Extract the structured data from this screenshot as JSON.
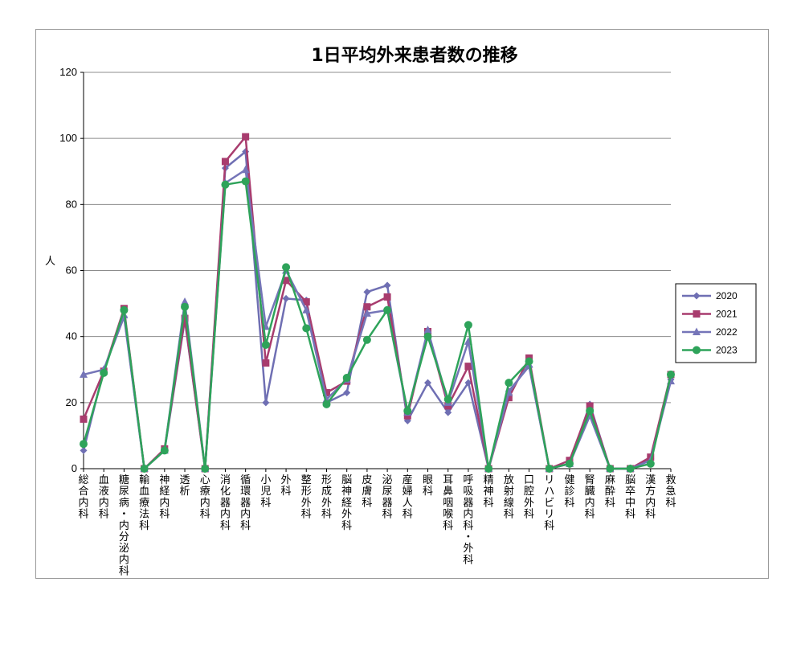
{
  "chart_data": {
    "type": "line",
    "title": "1日平均外来患者数の推移",
    "xlabel": "",
    "ylabel": "人",
    "ylim": [
      0,
      120
    ],
    "yticks": [
      0,
      20,
      40,
      60,
      80,
      100,
      120
    ],
    "grid": true,
    "legend_position": "right",
    "categories": [
      "総合内科",
      "血液内科",
      "糖尿病・内分泌内科",
      "輸血療法科",
      "神経内科",
      "透析",
      "心療内科",
      "消化器内科",
      "循環器内科",
      "小児科",
      "外科",
      "整形外科",
      "形成外科",
      "脳神経外科",
      "皮膚科",
      "泌尿器科",
      "産婦人科",
      "眼科",
      "耳鼻咽喉科",
      "呼吸器内科・外科",
      "精神科",
      "放射線科",
      "口腔外科",
      "リハビリ科",
      "健診科",
      "腎臓内科",
      "麻酔科",
      "脳卒中科",
      "漢方内科",
      "救急科"
    ],
    "series": [
      {
        "name": "2020",
        "color": "#6f6fb3",
        "marker": "diamond",
        "values": [
          5.5,
          30,
          46,
          0,
          5.5,
          45,
          0,
          91,
          96,
          20,
          51.5,
          51,
          20,
          23,
          53.5,
          55.5,
          14.5,
          26,
          17,
          26,
          0,
          23.5,
          31,
          0,
          1.5,
          19.5,
          0,
          0,
          3,
          27
        ]
      },
      {
        "name": "2021",
        "color": "#a83c6e",
        "marker": "square",
        "values": [
          15,
          29.5,
          48.5,
          0,
          6,
          45.5,
          0,
          93,
          100.5,
          32,
          57,
          50.5,
          23,
          26.5,
          49,
          52,
          16,
          41.5,
          19,
          31,
          0,
          21.5,
          33.5,
          0,
          2.5,
          19,
          0,
          0,
          3.5,
          28.5
        ]
      },
      {
        "name": "2022",
        "color": "#7575b8",
        "marker": "triangle",
        "values": [
          28.5,
          30,
          46.5,
          0,
          5.5,
          50.5,
          0,
          86.5,
          90.5,
          43,
          60,
          48,
          21,
          27,
          47,
          48,
          17,
          42,
          20,
          38.5,
          0,
          23,
          31.5,
          0,
          1.5,
          16,
          0,
          0,
          2.5,
          26.5
        ]
      },
      {
        "name": "2023",
        "color": "#2ea35a",
        "marker": "circle",
        "values": [
          7.5,
          29,
          48,
          0,
          5.5,
          49,
          0,
          86,
          87,
          37.5,
          61,
          42.5,
          19.5,
          27.5,
          39,
          48,
          17.5,
          40,
          21,
          43.5,
          0,
          26,
          32.5,
          0,
          1.5,
          17.5,
          0,
          0,
          1.5,
          28.5
        ]
      }
    ]
  }
}
